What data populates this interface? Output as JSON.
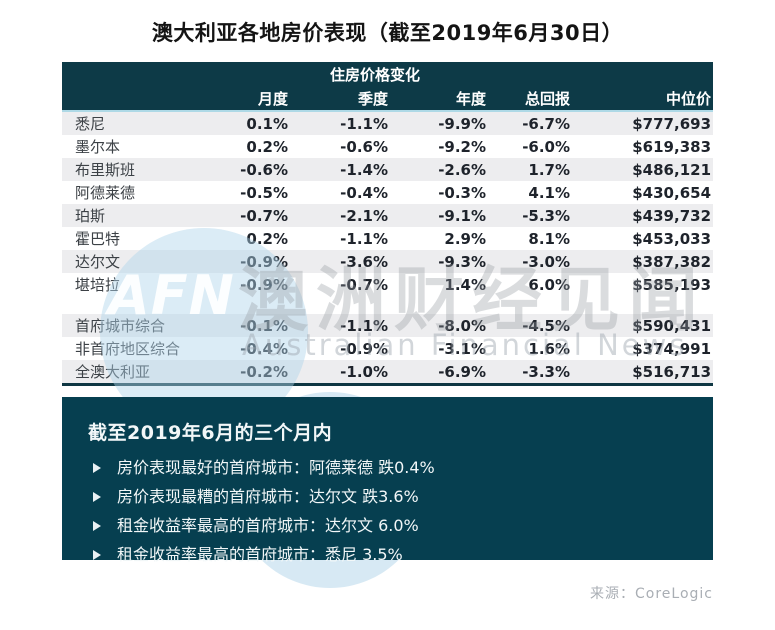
{
  "title": "澳大利亚各地房价表现（截至2019年6月30日）",
  "chart_data": {
    "type": "table",
    "title": "澳大利亚各地房价表现（截至2019年6月30日）",
    "group_header": "住房价格变化",
    "columns": [
      "月度",
      "季度",
      "年度",
      "总回报",
      "中位价"
    ],
    "rows": [
      [
        "悉尼",
        "0.1%",
        "-1.1%",
        "-9.9%",
        "-6.7%",
        "$777,693"
      ],
      [
        "墨尔本",
        "0.2%",
        "-0.6%",
        "-9.2%",
        "-6.0%",
        "$619,383"
      ],
      [
        "布里斯班",
        "-0.6%",
        "-1.4%",
        "-2.6%",
        "1.7%",
        "$486,121"
      ],
      [
        "阿德莱德",
        "-0.5%",
        "-0.4%",
        "-0.3%",
        "4.1%",
        "$430,654"
      ],
      [
        "珀斯",
        "-0.7%",
        "-2.1%",
        "-9.1%",
        "-5.3%",
        "$439,732"
      ],
      [
        "霍巴特",
        "0.2%",
        "-1.1%",
        "2.9%",
        "8.1%",
        "$453,033"
      ],
      [
        "达尔文",
        "-0.9%",
        "-3.6%",
        "-9.3%",
        "-3.0%",
        "$387,382"
      ],
      [
        "堪培拉",
        "-0.9%",
        "-0.7%",
        "1.4%",
        "6.0%",
        "$585,193"
      ]
    ],
    "summary_rows": [
      [
        "首府城市综合",
        "-0.1%",
        "-1.1%",
        "-8.0%",
        "-4.5%",
        "$590,431"
      ],
      [
        "非首府地区综合",
        "-0.4%",
        "-0.9%",
        "-3.1%",
        "1.6%",
        "$374,991"
      ],
      [
        "全澳大利亚",
        "-0.2%",
        "-1.0%",
        "-6.9%",
        "-3.3%",
        "$516,713"
      ]
    ]
  },
  "panel": {
    "heading": "截至2019年6月的三个月内",
    "bullets": [
      "房价表现最好的首府城市：阿德莱德 跌0.4%",
      "房价表现最糟的首府城市：达尔文 跌3.6%",
      "租金收益率最高的首府城市：达尔文 6.0%",
      "租金收益率最高的首府城市：悉尼 3.5%"
    ]
  },
  "source": "来源：CoreLogic",
  "watermark": {
    "logo_text": "AFN",
    "cn_text": "澳洲财经见闻",
    "en_text": "Australian Financial News"
  },
  "colors": {
    "header_teal": "#0d3a47",
    "panel_teal": "#063f50",
    "stripe_gray": "#ededef",
    "accent_line": "#aed9e6",
    "watermark_blue": "#b0d4ea"
  }
}
